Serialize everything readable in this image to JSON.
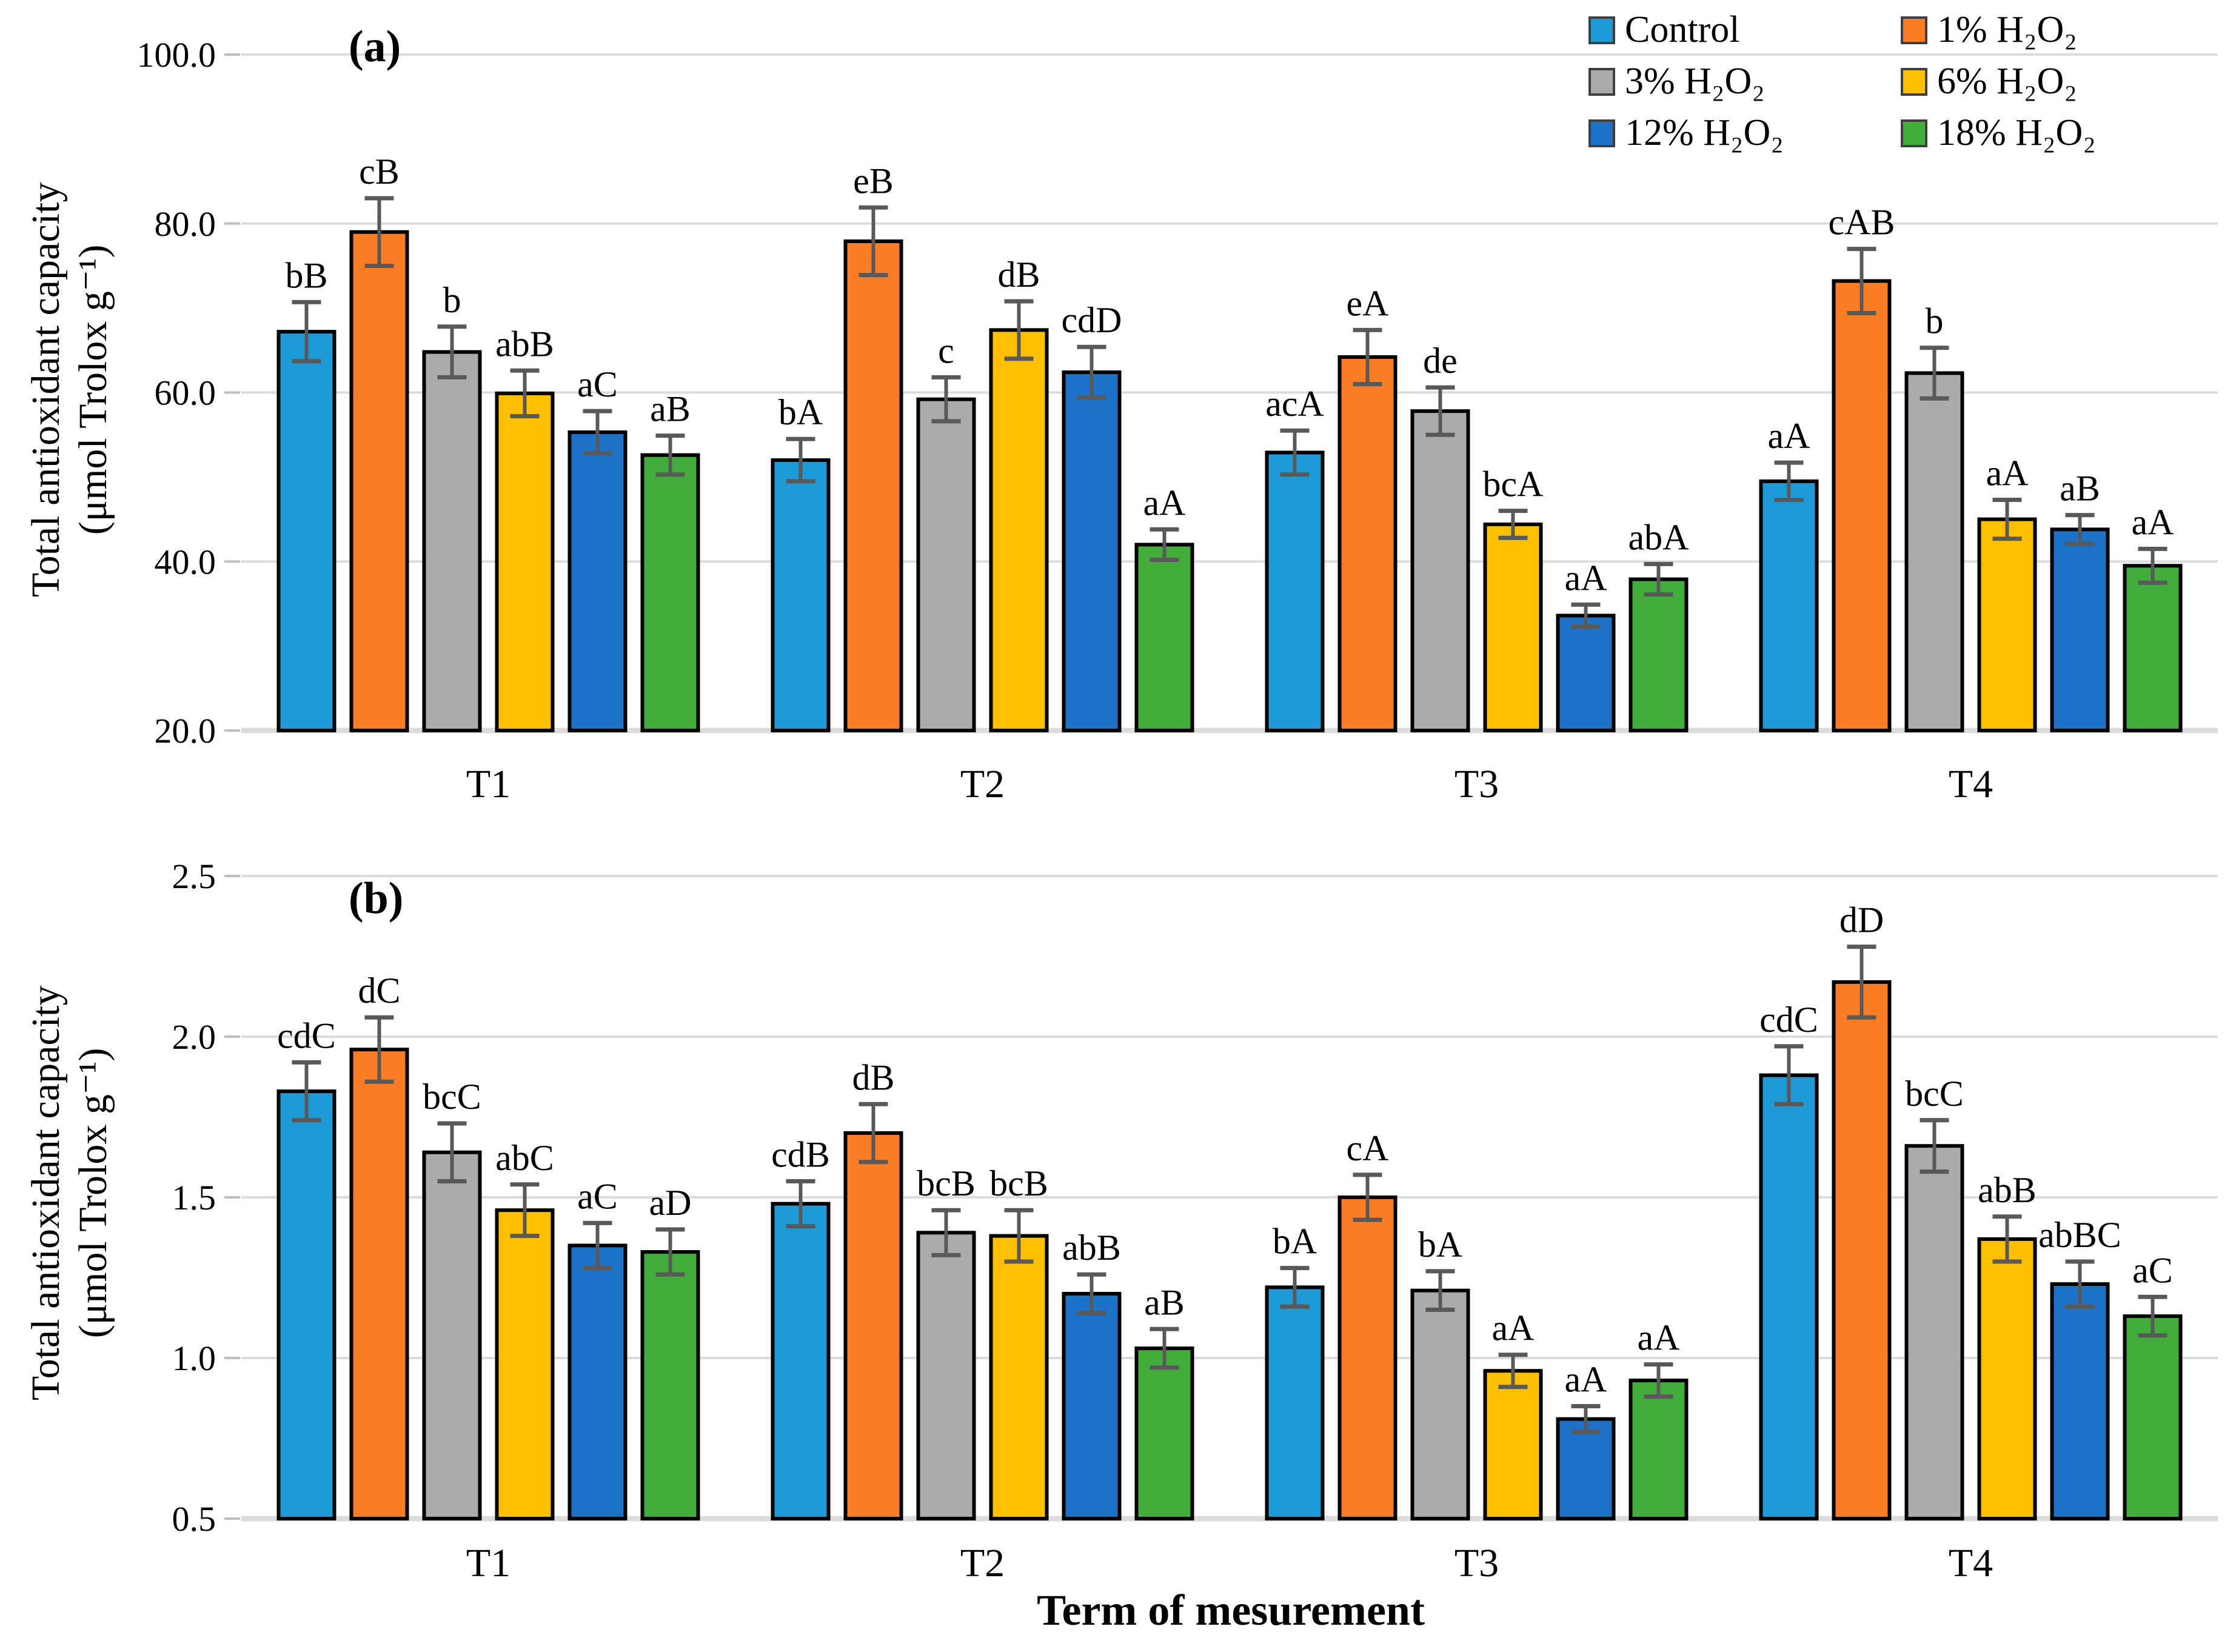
{
  "figure": {
    "x_axis_title": "Term of mesurement",
    "y_axis_title_line1": "Total antioxidant capacity",
    "y_axis_title_line2": "(μmol Trolox g⁻¹)"
  },
  "legend": {
    "position": "top-right",
    "items": [
      {
        "label": "Control",
        "color": "#1E9AD7"
      },
      {
        "label": "1% H₂O₂",
        "color": "#FA7D26"
      },
      {
        "label": "3% H₂O₂",
        "color": "#ABABAB"
      },
      {
        "label": "6% H₂O₂",
        "color": "#FFC001"
      },
      {
        "label": "12% H₂O₂",
        "color": "#1B72C6"
      },
      {
        "label": "18% H₂O₂",
        "color": "#43AD3C"
      }
    ]
  },
  "chart_data": [
    {
      "type": "bar",
      "panel_label": "(a)",
      "ylabel": "Total antioxidant capacity (μmol Trolox g⁻¹)",
      "ylim": [
        20,
        100
      ],
      "yticks": [
        "100.0",
        "80.0",
        "60.0",
        "40.0",
        "20.0"
      ],
      "grid": "horizontal",
      "error_bars": true,
      "categories": [
        "T1",
        "T2",
        "T3",
        "T4"
      ],
      "series": [
        {
          "name": "Control",
          "color": "#1E9AD7",
          "values": [
            67.2,
            52.0,
            52.9,
            49.5
          ],
          "errors": [
            3.5,
            2.5,
            2.6,
            2.2
          ],
          "sig_labels": [
            "bB",
            "bA",
            "acA",
            "aA"
          ]
        },
        {
          "name": "1% H₂O₂",
          "color": "#FA7D26",
          "values": [
            79.0,
            77.9,
            64.2,
            73.2
          ],
          "errors": [
            4.0,
            4.0,
            3.2,
            3.8
          ],
          "sig_labels": [
            "cB",
            "eB",
            "eA",
            "cAB"
          ]
        },
        {
          "name": "3% H₂O₂",
          "color": "#ABABAB",
          "values": [
            64.8,
            59.2,
            57.8,
            62.3
          ],
          "errors": [
            3.0,
            2.6,
            2.8,
            3.0
          ],
          "sig_labels": [
            "b",
            "c",
            "de",
            "b"
          ]
        },
        {
          "name": "6% H₂O₂",
          "color": "#FFC001",
          "values": [
            59.9,
            67.4,
            44.4,
            45.0
          ],
          "errors": [
            2.7,
            3.4,
            1.6,
            2.3
          ],
          "sig_labels": [
            "abB",
            "dB",
            "bcA",
            "aA"
          ]
        },
        {
          "name": "12% H₂O₂",
          "color": "#1B72C6",
          "values": [
            55.3,
            62.4,
            33.6,
            43.8
          ],
          "errors": [
            2.5,
            3.0,
            1.3,
            1.7
          ],
          "sig_labels": [
            "aC",
            "cdD",
            "aA",
            "aB"
          ]
        },
        {
          "name": "18% H₂O₂",
          "color": "#43AD3C",
          "values": [
            52.6,
            42.0,
            37.9,
            39.5
          ],
          "errors": [
            2.3,
            1.8,
            1.8,
            2.0
          ],
          "sig_labels": [
            "aB",
            "aA",
            "abA",
            "aA"
          ]
        }
      ]
    },
    {
      "type": "bar",
      "panel_label": "(b)",
      "ylabel": "Total antioxidant capacity (μmol Trolox g⁻¹)",
      "ylim": [
        0.5,
        2.5
      ],
      "yticks": [
        "2.5",
        "2.0",
        "1.5",
        "1.0",
        "0.5"
      ],
      "grid": "horizontal",
      "error_bars": true,
      "categories": [
        "T1",
        "T2",
        "T3",
        "T4"
      ],
      "series": [
        {
          "name": "Control",
          "color": "#1E9AD7",
          "values": [
            1.83,
            1.48,
            1.22,
            1.88
          ],
          "errors": [
            0.09,
            0.07,
            0.06,
            0.09
          ],
          "sig_labels": [
            "cdC",
            "cdB",
            "bA",
            "cdC"
          ]
        },
        {
          "name": "1% H₂O₂",
          "color": "#FA7D26",
          "values": [
            1.96,
            1.7,
            1.5,
            2.17
          ],
          "errors": [
            0.1,
            0.09,
            0.07,
            0.11
          ],
          "sig_labels": [
            "dC",
            "dB",
            "cA",
            "dD"
          ]
        },
        {
          "name": "3% H₂O₂",
          "color": "#ABABAB",
          "values": [
            1.64,
            1.39,
            1.21,
            1.66
          ],
          "errors": [
            0.09,
            0.07,
            0.06,
            0.08
          ],
          "sig_labels": [
            "bcC",
            "bcB",
            "bA",
            "bcC"
          ]
        },
        {
          "name": "6% H₂O₂",
          "color": "#FFC001",
          "values": [
            1.46,
            1.38,
            0.96,
            1.37
          ],
          "errors": [
            0.08,
            0.08,
            0.05,
            0.07
          ],
          "sig_labels": [
            "abC",
            "bcB",
            "aA",
            "abB"
          ]
        },
        {
          "name": "12% H₂O₂",
          "color": "#1B72C6",
          "values": [
            1.35,
            1.2,
            0.81,
            1.23
          ],
          "errors": [
            0.07,
            0.06,
            0.04,
            0.07
          ],
          "sig_labels": [
            "aC",
            "abB",
            "aA",
            "abBC"
          ]
        },
        {
          "name": "18% H₂O₂",
          "color": "#43AD3C",
          "values": [
            1.33,
            1.03,
            0.93,
            1.13
          ],
          "errors": [
            0.07,
            0.06,
            0.05,
            0.06
          ],
          "sig_labels": [
            "aD",
            "aB",
            "aA",
            "aC"
          ]
        }
      ]
    }
  ]
}
